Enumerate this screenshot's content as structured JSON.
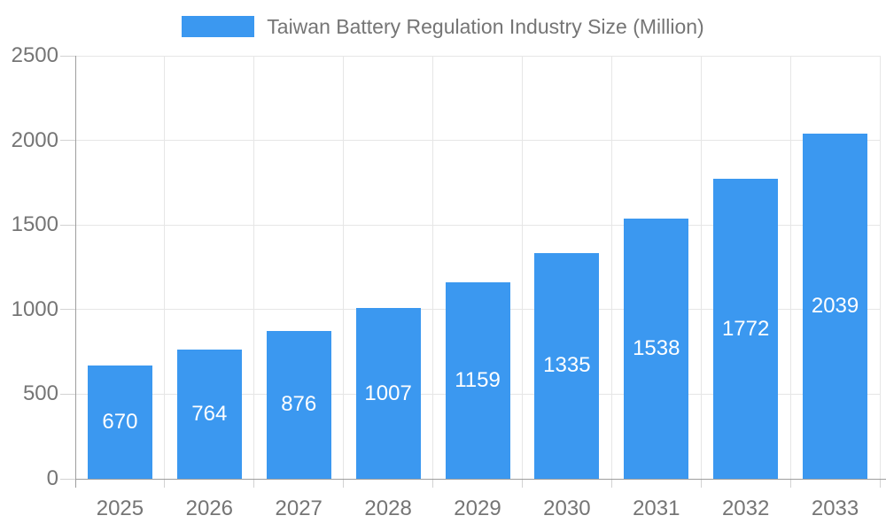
{
  "legend": {
    "label": "Taiwan Battery Regulation Industry Size (Million)"
  },
  "chart_data": {
    "type": "bar",
    "title": "Taiwan Battery Regulation Industry Size (Million)",
    "categories": [
      "2025",
      "2026",
      "2027",
      "2028",
      "2029",
      "2030",
      "2031",
      "2032",
      "2033"
    ],
    "series": [
      {
        "name": "Taiwan Battery Regulation Industry Size (Million)",
        "values": [
          670,
          764,
          876,
          1007,
          1159,
          1335,
          1538,
          1772,
          2039
        ]
      }
    ],
    "xlabel": "",
    "ylabel": "",
    "ylim": [
      0,
      2500
    ],
    "yticks": [
      0,
      500,
      1000,
      1500,
      2000,
      2500
    ],
    "grid": true,
    "legend_position": "top",
    "value_labels": "white, centered inside bars"
  },
  "colors": {
    "bar": "#3b98f0",
    "bar_label": "#ffffff",
    "axis_line": "#9e9e9e",
    "tick": "#d2d2d2",
    "gridline": "#e6e6e6",
    "text": "#757575",
    "background": "#ffffff"
  }
}
